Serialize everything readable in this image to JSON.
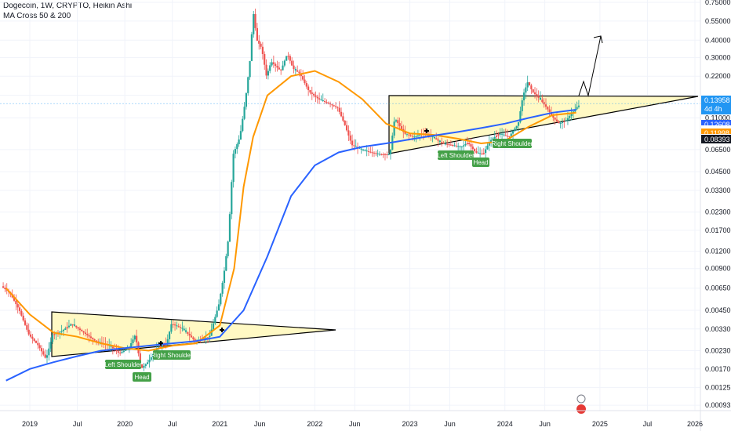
{
  "header": {
    "title": "Dogecoin, 1W, CRYPTO, Heikin Ashi",
    "indicator": "MA Cross 50 & 200"
  },
  "colors": {
    "up": "#26a69a",
    "down": "#ef5350",
    "ma50": "#ff9800",
    "ma200": "#2962ff",
    "triangle_fill": "#fff9c4",
    "annotation": "#43a047",
    "current_price_tag": "#2196f3",
    "ma50_tag": "#ff9800",
    "ma200_tag": "#2962ff",
    "last_tag": "#131722"
  },
  "chart_data": {
    "type": "candlestick",
    "scale": "log",
    "ylim": [
      0.00085,
      0.78
    ],
    "y_ticks": [
      "0.75000",
      "0.55000",
      "0.40000",
      "0.30000",
      "0.22000",
      "0.16000",
      "0.11000",
      "0.06500",
      "0.04500",
      "0.03300",
      "0.02300",
      "0.01700",
      "0.01200",
      "0.00900",
      "0.00650",
      "0.00450",
      "0.00330",
      "0.00230",
      "0.00170",
      "0.00125",
      "0.00093"
    ],
    "x_ticks": [
      "2019",
      "Jul",
      "2020",
      "Jul",
      "2021",
      "Jun",
      "2022",
      "Jun",
      "2023",
      "Jun",
      "2024",
      "Jun",
      "2025",
      "Jul",
      "2026"
    ],
    "price_tags": [
      {
        "label": "0.13958",
        "sub": "4d 4h",
        "kind": "current"
      },
      {
        "label": "0.12608",
        "kind": "ma200"
      },
      {
        "label": "0.11998",
        "kind": "ma50"
      },
      {
        "label": "0.08393",
        "kind": "last"
      }
    ],
    "annotations": [
      "Left Shoulder",
      "Head",
      "Right Shoulder",
      "Left Shoulder",
      "Head",
      "Right Shoulder"
    ],
    "series": [
      {
        "name": "MA 50",
        "dates": [
          2018.75,
          2019.0,
          2019.25,
          2019.5,
          2019.75,
          2020.0,
          2020.25,
          2020.5,
          2020.75,
          2021.0,
          2021.15,
          2021.25,
          2021.35,
          2021.5,
          2021.75,
          2022.0,
          2022.25,
          2022.5,
          2022.75,
          2023.0,
          2023.25,
          2023.5,
          2023.75,
          2024.0,
          2024.25,
          2024.5,
          2024.75
        ],
        "values": [
          0.0065,
          0.0042,
          0.0031,
          0.0029,
          0.0026,
          0.0024,
          0.0023,
          0.0025,
          0.0026,
          0.0035,
          0.009,
          0.035,
          0.08,
          0.16,
          0.22,
          0.24,
          0.2,
          0.15,
          0.1,
          0.085,
          0.083,
          0.078,
          0.072,
          0.075,
          0.095,
          0.115,
          0.12
        ]
      },
      {
        "name": "MA 200",
        "dates": [
          2018.75,
          2019.0,
          2019.25,
          2019.5,
          2019.75,
          2020.0,
          2020.25,
          2020.5,
          2020.75,
          2021.0,
          2021.25,
          2021.5,
          2021.75,
          2022.0,
          2022.25,
          2022.5,
          2022.75,
          2023.0,
          2023.25,
          2023.5,
          2023.75,
          2024.0,
          2024.25,
          2024.5,
          2024.75
        ],
        "values": [
          0.0014,
          0.0017,
          0.0019,
          0.0021,
          0.0023,
          0.0024,
          0.0025,
          0.0026,
          0.0027,
          0.0029,
          0.0045,
          0.011,
          0.03,
          0.05,
          0.062,
          0.068,
          0.072,
          0.077,
          0.082,
          0.087,
          0.093,
          0.1,
          0.11,
          0.12,
          0.126
        ]
      }
    ],
    "candles_summary": "Weekly Heikin Ashi Dogecoin 2018.7-2024.75, peak ~0.7 in May 2021"
  }
}
